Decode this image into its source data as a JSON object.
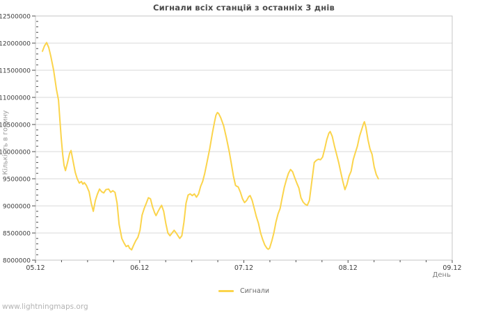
{
  "page": {
    "watermark": "www.lightningmaps.org"
  },
  "chart_data": {
    "type": "line",
    "title": "Сигнали всіх станцій з останніх 3 днів",
    "xlabel": "День",
    "ylabel": "Кількість в годину",
    "legend_position": "bottom-center",
    "grid": "horizontal",
    "x_tick_labels": [
      "05.12",
      "06.12",
      "07.12",
      "08.12",
      "09.12"
    ],
    "x_range_days": [
      0,
      4
    ],
    "x_minor_tick_days": 0.25,
    "ylim": [
      8000000,
      12500000
    ],
    "y_tick_step": 500000,
    "y_minor_tick_step": 100000,
    "colors": {
      "line": "#FBD44B",
      "grid": "#D9D9D9",
      "border": "#C4C4C4",
      "tick": "#4d4d4d",
      "tick_label": "#3d3d3d"
    },
    "series": [
      {
        "name": "Сигнали",
        "color": "#FBD44B",
        "points": [
          [
            0.067,
            11850000
          ],
          [
            0.087,
            11950000
          ],
          [
            0.107,
            12010000
          ],
          [
            0.127,
            11920000
          ],
          [
            0.147,
            11760000
          ],
          [
            0.174,
            11500000
          ],
          [
            0.201,
            11150000
          ],
          [
            0.221,
            10950000
          ],
          [
            0.234,
            10600000
          ],
          [
            0.247,
            10250000
          ],
          [
            0.261,
            9950000
          ],
          [
            0.274,
            9750000
          ],
          [
            0.288,
            9650000
          ],
          [
            0.308,
            9800000
          ],
          [
            0.328,
            9970000
          ],
          [
            0.341,
            10020000
          ],
          [
            0.361,
            9820000
          ],
          [
            0.381,
            9620000
          ],
          [
            0.401,
            9500000
          ],
          [
            0.421,
            9420000
          ],
          [
            0.441,
            9450000
          ],
          [
            0.455,
            9400000
          ],
          [
            0.468,
            9430000
          ],
          [
            0.488,
            9380000
          ],
          [
            0.515,
            9260000
          ],
          [
            0.535,
            9050000
          ],
          [
            0.555,
            8900000
          ],
          [
            0.575,
            9100000
          ],
          [
            0.595,
            9220000
          ],
          [
            0.615,
            9310000
          ],
          [
            0.635,
            9260000
          ],
          [
            0.656,
            9240000
          ],
          [
            0.676,
            9300000
          ],
          [
            0.702,
            9310000
          ],
          [
            0.722,
            9250000
          ],
          [
            0.742,
            9280000
          ],
          [
            0.763,
            9250000
          ],
          [
            0.783,
            9050000
          ],
          [
            0.803,
            8660000
          ],
          [
            0.829,
            8400000
          ],
          [
            0.849,
            8320000
          ],
          [
            0.87,
            8250000
          ],
          [
            0.89,
            8270000
          ],
          [
            0.903,
            8220000
          ],
          [
            0.923,
            8190000
          ],
          [
            0.943,
            8280000
          ],
          [
            0.963,
            8360000
          ],
          [
            0.983,
            8420000
          ],
          [
            1.003,
            8550000
          ],
          [
            1.023,
            8830000
          ],
          [
            1.043,
            8950000
          ],
          [
            1.064,
            9050000
          ],
          [
            1.084,
            9150000
          ],
          [
            1.104,
            9130000
          ],
          [
            1.124,
            8980000
          ],
          [
            1.144,
            8870000
          ],
          [
            1.157,
            8820000
          ],
          [
            1.177,
            8900000
          ],
          [
            1.197,
            8970000
          ],
          [
            1.211,
            9010000
          ],
          [
            1.231,
            8900000
          ],
          [
            1.251,
            8680000
          ],
          [
            1.271,
            8500000
          ],
          [
            1.291,
            8450000
          ],
          [
            1.311,
            8500000
          ],
          [
            1.331,
            8550000
          ],
          [
            1.351,
            8500000
          ],
          [
            1.371,
            8440000
          ],
          [
            1.385,
            8400000
          ],
          [
            1.405,
            8450000
          ],
          [
            1.425,
            8700000
          ],
          [
            1.445,
            9050000
          ],
          [
            1.465,
            9200000
          ],
          [
            1.485,
            9220000
          ],
          [
            1.505,
            9190000
          ],
          [
            1.525,
            9220000
          ],
          [
            1.545,
            9160000
          ],
          [
            1.565,
            9220000
          ],
          [
            1.585,
            9360000
          ],
          [
            1.605,
            9450000
          ],
          [
            1.625,
            9600000
          ],
          [
            1.646,
            9800000
          ],
          [
            1.672,
            10050000
          ],
          [
            1.699,
            10350000
          ],
          [
            1.719,
            10550000
          ],
          [
            1.732,
            10670000
          ],
          [
            1.746,
            10720000
          ],
          [
            1.759,
            10700000
          ],
          [
            1.779,
            10620000
          ],
          [
            1.806,
            10480000
          ],
          [
            1.833,
            10250000
          ],
          [
            1.86,
            10000000
          ],
          [
            1.88,
            9780000
          ],
          [
            1.9,
            9550000
          ],
          [
            1.92,
            9380000
          ],
          [
            1.933,
            9360000
          ],
          [
            1.946,
            9350000
          ],
          [
            1.967,
            9250000
          ],
          [
            1.987,
            9130000
          ],
          [
            2.007,
            9060000
          ],
          [
            2.027,
            9100000
          ],
          [
            2.047,
            9170000
          ],
          [
            2.06,
            9190000
          ],
          [
            2.08,
            9100000
          ],
          [
            2.1,
            8950000
          ],
          [
            2.12,
            8800000
          ],
          [
            2.14,
            8680000
          ],
          [
            2.161,
            8500000
          ],
          [
            2.181,
            8380000
          ],
          [
            2.201,
            8280000
          ],
          [
            2.221,
            8220000
          ],
          [
            2.234,
            8200000
          ],
          [
            2.247,
            8220000
          ],
          [
            2.268,
            8350000
          ],
          [
            2.288,
            8500000
          ],
          [
            2.308,
            8700000
          ],
          [
            2.328,
            8850000
          ],
          [
            2.348,
            8950000
          ],
          [
            2.368,
            9150000
          ],
          [
            2.388,
            9340000
          ],
          [
            2.408,
            9480000
          ],
          [
            2.428,
            9600000
          ],
          [
            2.448,
            9670000
          ],
          [
            2.468,
            9630000
          ],
          [
            2.488,
            9520000
          ],
          [
            2.508,
            9420000
          ],
          [
            2.528,
            9330000
          ],
          [
            2.548,
            9150000
          ],
          [
            2.569,
            9070000
          ],
          [
            2.589,
            9030000
          ],
          [
            2.609,
            9010000
          ],
          [
            2.629,
            9100000
          ],
          [
            2.649,
            9400000
          ],
          [
            2.676,
            9800000
          ],
          [
            2.696,
            9840000
          ],
          [
            2.716,
            9860000
          ],
          [
            2.736,
            9850000
          ],
          [
            2.756,
            9900000
          ],
          [
            2.776,
            10050000
          ],
          [
            2.796,
            10220000
          ],
          [
            2.816,
            10340000
          ],
          [
            2.829,
            10370000
          ],
          [
            2.849,
            10280000
          ],
          [
            2.87,
            10100000
          ],
          [
            2.89,
            9950000
          ],
          [
            2.91,
            9800000
          ],
          [
            2.93,
            9620000
          ],
          [
            2.95,
            9450000
          ],
          [
            2.97,
            9300000
          ],
          [
            2.99,
            9400000
          ],
          [
            3.01,
            9550000
          ],
          [
            3.03,
            9640000
          ],
          [
            3.05,
            9850000
          ],
          [
            3.07,
            9980000
          ],
          [
            3.09,
            10100000
          ],
          [
            3.11,
            10280000
          ],
          [
            3.13,
            10400000
          ],
          [
            3.151,
            10530000
          ],
          [
            3.157,
            10550000
          ],
          [
            3.171,
            10450000
          ],
          [
            3.191,
            10220000
          ],
          [
            3.211,
            10050000
          ],
          [
            3.231,
            9950000
          ],
          [
            3.251,
            9720000
          ],
          [
            3.271,
            9580000
          ],
          [
            3.291,
            9500000
          ]
        ]
      }
    ]
  }
}
